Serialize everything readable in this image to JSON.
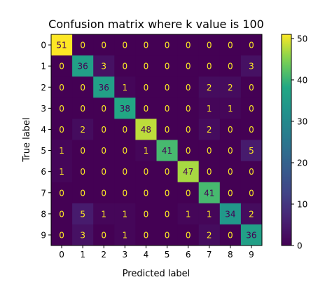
{
  "chart_data": {
    "type": "heatmap",
    "title": "Confusion matrix where k value is 100",
    "xlabel": "Predicted label",
    "ylabel": "True label",
    "x_categories": [
      "0",
      "1",
      "2",
      "3",
      "4",
      "5",
      "6",
      "7",
      "8",
      "9"
    ],
    "y_categories": [
      "0",
      "1",
      "2",
      "3",
      "4",
      "5",
      "6",
      "7",
      "8",
      "9"
    ],
    "values": [
      [
        51,
        0,
        0,
        0,
        0,
        0,
        0,
        0,
        0,
        0
      ],
      [
        0,
        36,
        3,
        0,
        0,
        0,
        0,
        0,
        0,
        3
      ],
      [
        0,
        0,
        36,
        1,
        0,
        0,
        0,
        2,
        2,
        0
      ],
      [
        0,
        0,
        0,
        38,
        0,
        0,
        0,
        1,
        1,
        0
      ],
      [
        0,
        2,
        0,
        0,
        48,
        0,
        0,
        2,
        0,
        0
      ],
      [
        1,
        0,
        0,
        0,
        1,
        41,
        0,
        0,
        0,
        5
      ],
      [
        1,
        0,
        0,
        0,
        0,
        0,
        47,
        0,
        0,
        0
      ],
      [
        0,
        0,
        0,
        0,
        0,
        0,
        0,
        41,
        0,
        0
      ],
      [
        0,
        5,
        1,
        1,
        0,
        0,
        1,
        1,
        34,
        2
      ],
      [
        0,
        3,
        0,
        1,
        0,
        0,
        0,
        2,
        0,
        36
      ]
    ],
    "colormap": "viridis",
    "vmin": 0,
    "vmax": 51,
    "colorbar_ticks": [
      0,
      10,
      20,
      30,
      40,
      50
    ],
    "text_color_low": "#fde725",
    "text_color_high": "#440154"
  }
}
